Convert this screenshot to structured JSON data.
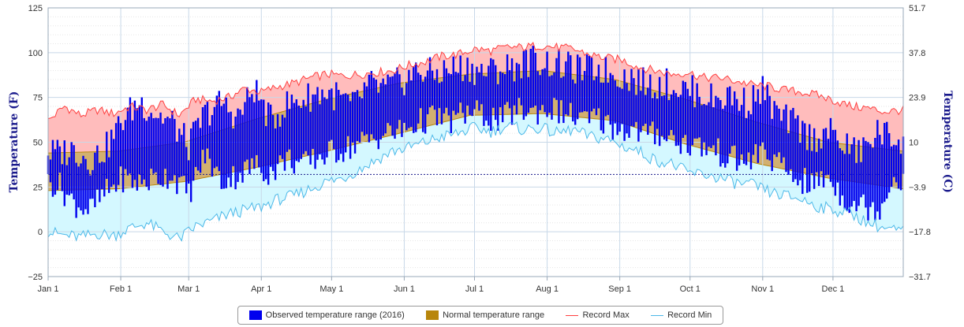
{
  "chart_data": {
    "type": "area",
    "xlabel": "",
    "ylabel_left": "Temperature (F)",
    "ylabel_right": "Temperature (C)",
    "x_unit": "day of year 2016",
    "xlim": [
      1,
      366
    ],
    "ylim": [
      -25,
      125
    ],
    "grid": true,
    "legend_position": "bottom",
    "x_ticks": [
      {
        "label": "Jan 1",
        "day": 1
      },
      {
        "label": "Feb 1",
        "day": 32
      },
      {
        "label": "Mar 1",
        "day": 61
      },
      {
        "label": "Apr 1",
        "day": 92
      },
      {
        "label": "May 1",
        "day": 122
      },
      {
        "label": "Jun 1",
        "day": 153
      },
      {
        "label": "Jul 1",
        "day": 183
      },
      {
        "label": "Aug 1",
        "day": 214
      },
      {
        "label": "Sep 1",
        "day": 245
      },
      {
        "label": "Oct 1",
        "day": 275
      },
      {
        "label": "Nov 1",
        "day": 306
      },
      {
        "label": "Dec 1",
        "day": 336
      }
    ],
    "y_ticks_left": [
      {
        "label": "−25",
        "value": -25
      },
      {
        "label": "0",
        "value": 0
      },
      {
        "label": "25",
        "value": 25
      },
      {
        "label": "50",
        "value": 50
      },
      {
        "label": "75",
        "value": 75
      },
      {
        "label": "100",
        "value": 100
      },
      {
        "label": "125",
        "value": 125
      }
    ],
    "y_ticks_right": [
      {
        "label": "−31.7",
        "value": -25
      },
      {
        "label": "−17.8",
        "value": 0
      },
      {
        "label": "−3.9",
        "value": 25
      },
      {
        "label": "10",
        "value": 50
      },
      {
        "label": "23.9",
        "value": 75
      },
      {
        "label": "37.8",
        "value": 100
      },
      {
        "label": "51.7",
        "value": 125
      }
    ],
    "reference_line": {
      "value": 32,
      "style": "dashed"
    },
    "series": [
      {
        "name": "Record Max",
        "color": "#ff4040",
        "fill": "#ffbcbc",
        "points": [
          [
            1,
            62
          ],
          [
            8,
            70
          ],
          [
            15,
            65
          ],
          [
            22,
            68
          ],
          [
            29,
            66
          ],
          [
            36,
            70
          ],
          [
            43,
            68
          ],
          [
            50,
            71
          ],
          [
            57,
            65
          ],
          [
            64,
            74
          ],
          [
            71,
            73
          ],
          [
            78,
            75
          ],
          [
            85,
            80
          ],
          [
            92,
            78
          ],
          [
            99,
            81
          ],
          [
            106,
            83
          ],
          [
            113,
            86
          ],
          [
            120,
            88
          ],
          [
            127,
            87
          ],
          [
            134,
            88
          ],
          [
            141,
            89
          ],
          [
            148,
            90
          ],
          [
            155,
            93
          ],
          [
            162,
            95
          ],
          [
            169,
            98
          ],
          [
            176,
            99
          ],
          [
            183,
            102
          ],
          [
            190,
            101
          ],
          [
            197,
            103
          ],
          [
            204,
            103
          ],
          [
            211,
            104
          ],
          [
            218,
            103
          ],
          [
            225,
            102
          ],
          [
            232,
            99
          ],
          [
            239,
            97
          ],
          [
            246,
            96
          ],
          [
            253,
            92
          ],
          [
            260,
            90
          ],
          [
            267,
            88
          ],
          [
            274,
            89
          ],
          [
            281,
            86
          ],
          [
            288,
            86
          ],
          [
            295,
            84
          ],
          [
            302,
            82
          ],
          [
            309,
            81
          ],
          [
            316,
            79
          ],
          [
            323,
            78
          ],
          [
            330,
            76
          ],
          [
            337,
            73
          ],
          [
            344,
            70
          ],
          [
            351,
            69
          ],
          [
            358,
            67
          ],
          [
            366,
            68
          ]
        ]
      },
      {
        "name": "Normal temperature range",
        "color": "#b8860b",
        "fill": "#d2b070",
        "high": [
          [
            1,
            44
          ],
          [
            31,
            45
          ],
          [
            59,
            50
          ],
          [
            90,
            63
          ],
          [
            120,
            74
          ],
          [
            151,
            83
          ],
          [
            181,
            88
          ],
          [
            212,
            90
          ],
          [
            243,
            85
          ],
          [
            273,
            74
          ],
          [
            304,
            61
          ],
          [
            334,
            50
          ],
          [
            366,
            45
          ]
        ],
        "low": [
          [
            1,
            23
          ],
          [
            31,
            24
          ],
          [
            59,
            28
          ],
          [
            90,
            36
          ],
          [
            120,
            45
          ],
          [
            151,
            55
          ],
          [
            181,
            65
          ],
          [
            212,
            66
          ],
          [
            243,
            62
          ],
          [
            273,
            49
          ],
          [
            304,
            38
          ],
          [
            334,
            30
          ],
          [
            366,
            24
          ]
        ]
      },
      {
        "name": "Record Min",
        "color": "#4cb8e8",
        "fill": "#d4f8ff",
        "points": [
          [
            1,
            0
          ],
          [
            8,
            -2
          ],
          [
            15,
            -3
          ],
          [
            22,
            -1
          ],
          [
            29,
            -2
          ],
          [
            36,
            2
          ],
          [
            43,
            5
          ],
          [
            50,
            0
          ],
          [
            57,
            -4
          ],
          [
            64,
            3
          ],
          [
            71,
            6
          ],
          [
            78,
            10
          ],
          [
            85,
            12
          ],
          [
            92,
            14
          ],
          [
            99,
            18
          ],
          [
            106,
            20
          ],
          [
            113,
            24
          ],
          [
            120,
            28
          ],
          [
            127,
            30
          ],
          [
            134,
            35
          ],
          [
            141,
            40
          ],
          [
            148,
            45
          ],
          [
            155,
            47
          ],
          [
            162,
            50
          ],
          [
            169,
            53
          ],
          [
            176,
            55
          ],
          [
            183,
            58
          ],
          [
            190,
            56
          ],
          [
            197,
            59
          ],
          [
            204,
            57
          ],
          [
            211,
            58
          ],
          [
            218,
            55
          ],
          [
            225,
            57
          ],
          [
            232,
            53
          ],
          [
            239,
            52
          ],
          [
            246,
            48
          ],
          [
            253,
            45
          ],
          [
            260,
            40
          ],
          [
            267,
            38
          ],
          [
            274,
            33
          ],
          [
            281,
            32
          ],
          [
            288,
            30
          ],
          [
            295,
            27
          ],
          [
            302,
            26
          ],
          [
            309,
            22
          ],
          [
            316,
            20
          ],
          [
            323,
            18
          ],
          [
            330,
            14
          ],
          [
            337,
            12
          ],
          [
            344,
            10
          ],
          [
            351,
            5
          ],
          [
            358,
            2
          ],
          [
            366,
            0
          ]
        ]
      },
      {
        "name": "Observed temperature range (2016)",
        "color": "#0000ee",
        "days_sample": [
          [
            5,
            44,
            27
          ],
          [
            12,
            46,
            16
          ],
          [
            19,
            40,
            12
          ],
          [
            26,
            47,
            22
          ],
          [
            33,
            63,
            30
          ],
          [
            40,
            73,
            27
          ],
          [
            47,
            66,
            30
          ],
          [
            54,
            61,
            32
          ],
          [
            61,
            48,
            21
          ],
          [
            68,
            66,
            43
          ],
          [
            75,
            72,
            28
          ],
          [
            82,
            64,
            32
          ],
          [
            89,
            80,
            37
          ],
          [
            96,
            62,
            33
          ],
          [
            103,
            71,
            41
          ],
          [
            110,
            74,
            37
          ],
          [
            117,
            78,
            42
          ],
          [
            124,
            76,
            45
          ],
          [
            131,
            70,
            48
          ],
          [
            138,
            82,
            51
          ],
          [
            145,
            80,
            55
          ],
          [
            152,
            84,
            56
          ],
          [
            159,
            90,
            61
          ],
          [
            166,
            88,
            64
          ],
          [
            173,
            91,
            62
          ],
          [
            180,
            92,
            67
          ],
          [
            187,
            89,
            65
          ],
          [
            194,
            91,
            62
          ],
          [
            201,
            93,
            68
          ],
          [
            208,
            96,
            67
          ],
          [
            215,
            94,
            69
          ],
          [
            222,
            92,
            66
          ],
          [
            229,
            90,
            62
          ],
          [
            236,
            91,
            63
          ],
          [
            243,
            88,
            58
          ],
          [
            250,
            86,
            57
          ],
          [
            257,
            82,
            54
          ],
          [
            264,
            83,
            55
          ],
          [
            271,
            80,
            50
          ],
          [
            278,
            78,
            48
          ],
          [
            285,
            74,
            46
          ],
          [
            292,
            76,
            41
          ],
          [
            299,
            72,
            39
          ],
          [
            306,
            79,
            45
          ],
          [
            313,
            64,
            37
          ],
          [
            320,
            60,
            30
          ],
          [
            327,
            52,
            26
          ],
          [
            334,
            56,
            31
          ],
          [
            341,
            48,
            18
          ],
          [
            348,
            44,
            15
          ],
          [
            355,
            56,
            12
          ],
          [
            362,
            52,
            30
          ]
        ]
      }
    ]
  }
}
